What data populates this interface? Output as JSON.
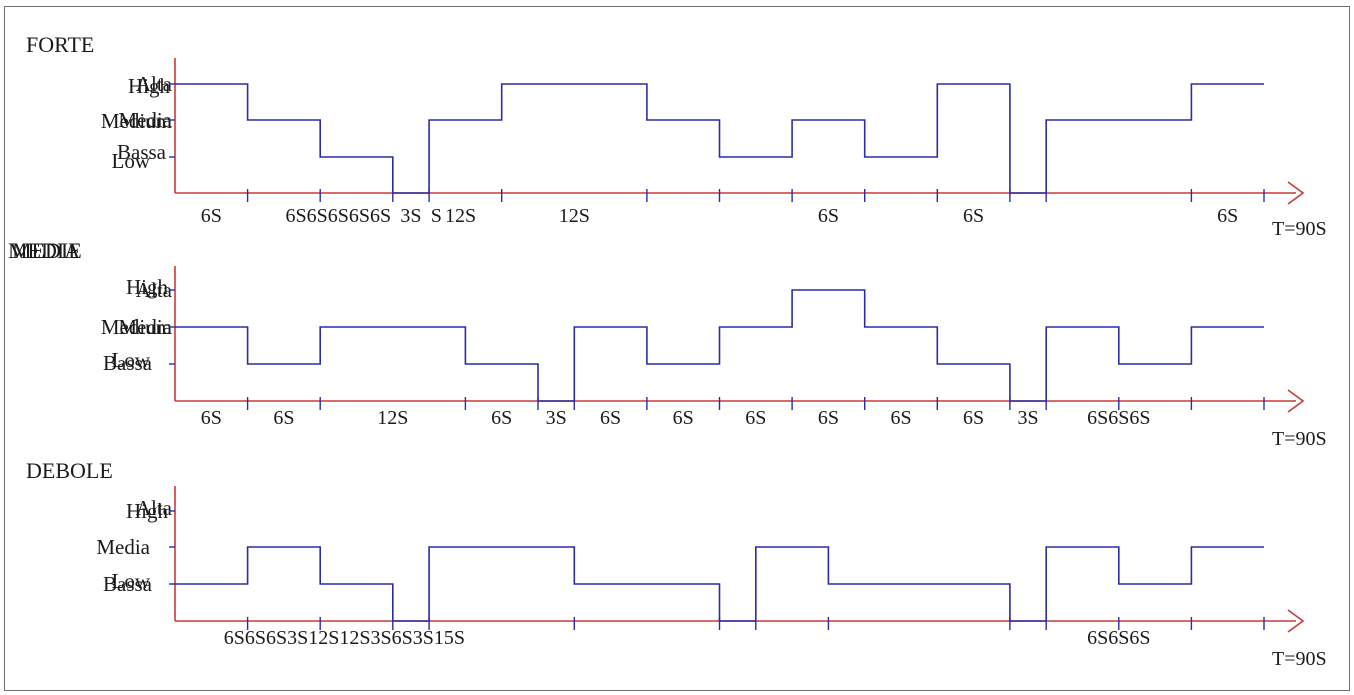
{
  "panels": [
    {
      "title": "FORTE",
      "title_overlay": "",
      "levels": [
        {
          "primary": "Alta",
          "overlay": "High"
        },
        {
          "primary": "Media",
          "overlay": "Medium"
        },
        {
          "primary": "Bassa",
          "overlay": "Low"
        }
      ],
      "profile": [
        {
          "t": 0,
          "level": 3
        },
        {
          "t": 6,
          "level": 2
        },
        {
          "t": 12,
          "level": 1
        },
        {
          "t": 18,
          "level": 0
        },
        {
          "t": 21,
          "level": 2
        },
        {
          "t": 27,
          "level": 3
        },
        {
          "t": 39,
          "level": 2
        },
        {
          "t": 45,
          "level": 1
        },
        {
          "t": 51,
          "level": 2
        },
        {
          "t": 57,
          "level": 1
        },
        {
          "t": 63,
          "level": 3
        },
        {
          "t": 69,
          "level": 0
        },
        {
          "t": 72,
          "level": 2
        },
        {
          "t": 84,
          "level": 3
        },
        {
          "t": 90,
          "level": 3
        }
      ],
      "ticks": [
        6,
        12,
        18,
        21,
        27,
        39,
        45,
        51,
        57,
        63,
        69,
        72,
        84,
        90
      ],
      "duration_labels": [
        {
          "text": "6S",
          "t": 3
        },
        {
          "text": "6S6S6S6S6S",
          "t": 13.5
        },
        {
          "text": "3S",
          "t": 19.5
        },
        {
          "text": "S",
          "t": 21.6
        },
        {
          "text": "12S",
          "t": 23.6
        },
        {
          "text": "12S",
          "t": 33
        },
        {
          "text": "6S",
          "t": 54
        },
        {
          "text": "6S",
          "t": 66
        },
        {
          "text": "6S",
          "t": 87
        }
      ],
      "total": "T=90S"
    },
    {
      "title": "MEDIA",
      "title_overlay": "MEDIE",
      "levels": [
        {
          "primary": "Alta",
          "overlay": "High"
        },
        {
          "primary": "Media",
          "overlay": "Medium"
        },
        {
          "primary": "Bassa",
          "overlay": "Low"
        }
      ],
      "profile": [
        {
          "t": 0,
          "level": 2
        },
        {
          "t": 6,
          "level": 1
        },
        {
          "t": 12,
          "level": 2
        },
        {
          "t": 24,
          "level": 1
        },
        {
          "t": 30,
          "level": 0
        },
        {
          "t": 33,
          "level": 2
        },
        {
          "t": 39,
          "level": 1
        },
        {
          "t": 45,
          "level": 2
        },
        {
          "t": 51,
          "level": 3
        },
        {
          "t": 57,
          "level": 2
        },
        {
          "t": 63,
          "level": 1
        },
        {
          "t": 69,
          "level": 0
        },
        {
          "t": 72,
          "level": 2
        },
        {
          "t": 78,
          "level": 1
        },
        {
          "t": 84,
          "level": 2
        },
        {
          "t": 90,
          "level": 2
        }
      ],
      "ticks": [
        6,
        12,
        24,
        30,
        33,
        39,
        45,
        51,
        57,
        63,
        69,
        72,
        78,
        84,
        90
      ],
      "duration_labels": [
        {
          "text": "6S",
          "t": 3
        },
        {
          "text": "6S",
          "t": 9
        },
        {
          "text": "12S",
          "t": 18
        },
        {
          "text": "6S",
          "t": 27
        },
        {
          "text": "3S",
          "t": 31.5
        },
        {
          "text": "6S",
          "t": 36
        },
        {
          "text": "6S",
          "t": 42
        },
        {
          "text": "6S",
          "t": 48
        },
        {
          "text": "6S",
          "t": 54
        },
        {
          "text": "6S",
          "t": 60
        },
        {
          "text": "6S",
          "t": 66
        },
        {
          "text": "3S",
          "t": 70.5
        },
        {
          "text": "6S6S6S",
          "t": 78
        }
      ],
      "total": "T=90S"
    },
    {
      "title": "DEBOLE",
      "title_overlay": "",
      "levels": [
        {
          "primary": "Alta",
          "overlay": "High"
        },
        {
          "primary": "Media",
          "overlay": ""
        },
        {
          "primary": "Bassa",
          "overlay": "Low"
        }
      ],
      "profile": [
        {
          "t": 0,
          "level": 1
        },
        {
          "t": 6,
          "level": 2
        },
        {
          "t": 12,
          "level": 1
        },
        {
          "t": 18,
          "level": 0
        },
        {
          "t": 21,
          "level": 2
        },
        {
          "t": 33,
          "level": 1
        },
        {
          "t": 45,
          "level": 0
        },
        {
          "t": 48,
          "level": 2
        },
        {
          "t": 54,
          "level": 1
        },
        {
          "t": 69,
          "level": 0
        },
        {
          "t": 72,
          "level": 2
        },
        {
          "t": 78,
          "level": 1
        },
        {
          "t": 84,
          "level": 2
        },
        {
          "t": 90,
          "level": 2
        }
      ],
      "ticks": [
        6,
        12,
        18,
        21,
        33,
        45,
        48,
        54,
        69,
        72,
        78,
        84,
        90
      ],
      "duration_labels": [
        {
          "text": "6S6S6S3S12S12S3S6S3S15S",
          "t": 14
        },
        {
          "text": "6S6S6S",
          "t": 78
        }
      ],
      "total": "T=90S"
    }
  ],
  "colors": {
    "axis": "#c83a3a",
    "trace": "#2c2ca8",
    "text": "#1a1a1a",
    "border": "#6f6f6f"
  }
}
